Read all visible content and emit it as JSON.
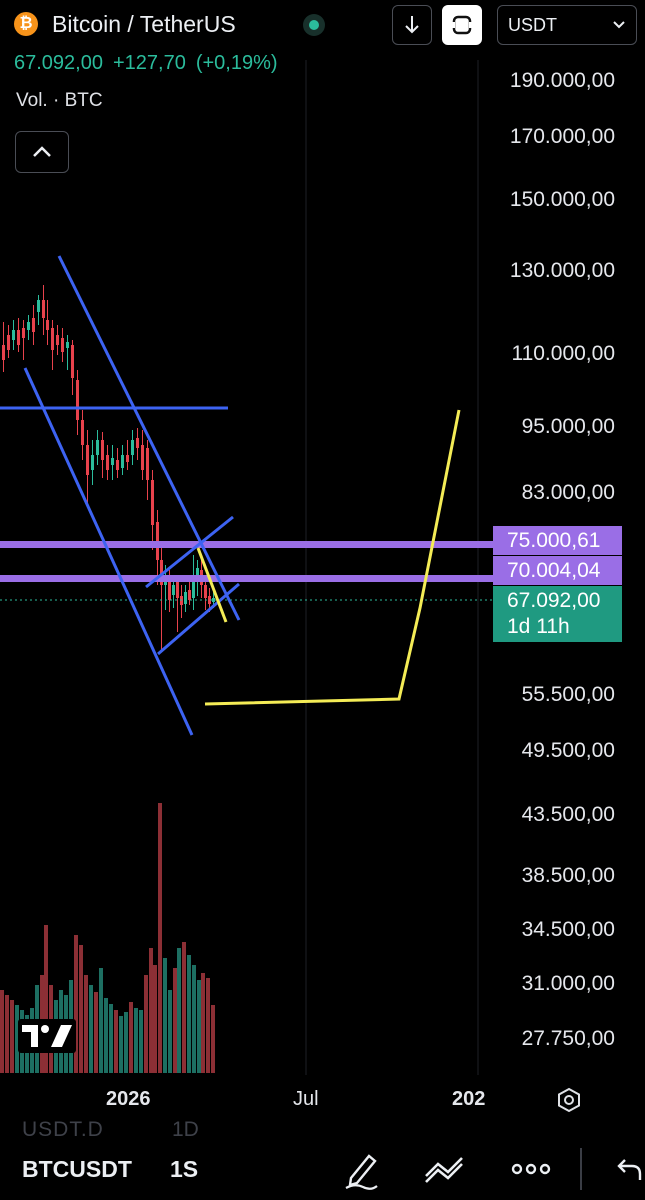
{
  "header": {
    "coin_glyph": "₿",
    "title": "Bitcoin / TetherUS",
    "last_price": "67.092,00",
    "change_abs": "+127,70",
    "change_pct": "(+0,19%)",
    "volume_label": "Vol. · BTC",
    "currency": "USDT"
  },
  "price_scale": [
    "190.000,00",
    "170.000,00",
    "150.000,00",
    "130.000,00",
    "110.000,00",
    "95.000,00",
    "83.000,00",
    "55.500,00",
    "49.500,00",
    "43.500,00",
    "38.500,00",
    "34.500,00",
    "31.000,00",
    "27.750,00"
  ],
  "price_badges": {
    "level1": "75.000,61",
    "level2": "70.004,04",
    "current": "67.092,00",
    "countdown": "1d 11h"
  },
  "time_axis": {
    "t1": "2026",
    "t2": "Jul",
    "t3": "202"
  },
  "bottom": {
    "symbol": "BTCUSDT",
    "interval": "1S",
    "ghost_symbol": "USDT.D",
    "ghost_interval": "1D"
  },
  "colors": {
    "up": "#2bbc9c",
    "down": "#e8424c",
    "trend_blue": "#3d63f2",
    "level_purple": "#9a6ee6",
    "projection_yellow": "#f4ec56"
  },
  "icons": {
    "download": "download-icon",
    "fullscreen": "fullscreen-icon",
    "chevron": "chevron-down-icon",
    "collapse": "chevron-up-icon",
    "settings": "settings-icon",
    "draw": "pencil-icon",
    "indicators": "indicators-icon",
    "more": "more-icon",
    "undo": "undo-icon"
  }
}
